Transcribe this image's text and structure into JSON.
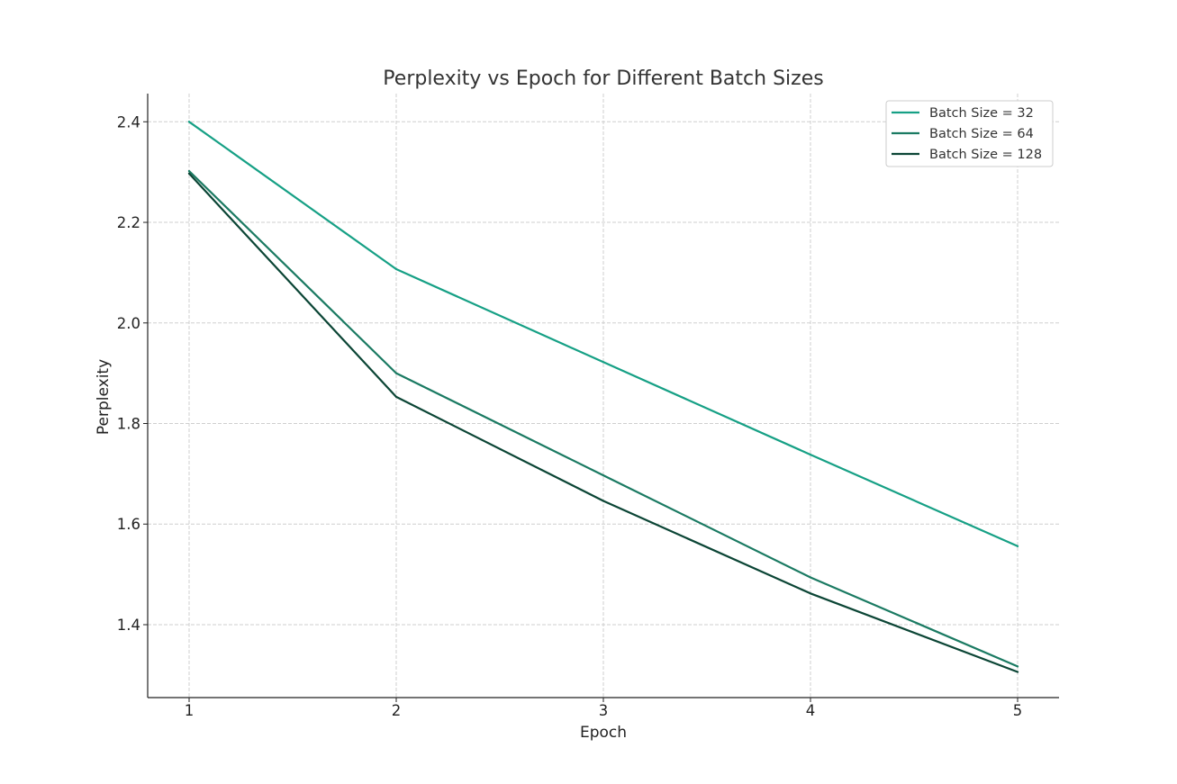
{
  "chart_data": {
    "type": "line",
    "title": "Perplexity vs Epoch for Different Batch Sizes",
    "xlabel": "Epoch",
    "ylabel": "Perplexity",
    "x": [
      1,
      2,
      3,
      4,
      5
    ],
    "xticks": [
      "1",
      "2",
      "3",
      "4",
      "5"
    ],
    "yticks": [
      "1.4",
      "1.6",
      "1.8",
      "2.0",
      "2.2",
      "2.4"
    ],
    "xlim": [
      0.8,
      5.2
    ],
    "ylim": [
      1.255,
      2.456
    ],
    "grid": true,
    "legend_position": "top-right",
    "series": [
      {
        "name": "Batch Size = 32",
        "color": "#16a085",
        "values": [
          2.4,
          2.107,
          1.922,
          1.738,
          1.556
        ]
      },
      {
        "name": "Batch Size = 64",
        "color": "#1a7a62",
        "values": [
          2.302,
          1.9,
          1.697,
          1.494,
          1.317
        ]
      },
      {
        "name": "Batch Size = 128",
        "color": "#0b4535",
        "values": [
          2.297,
          1.853,
          1.646,
          1.462,
          1.306
        ]
      }
    ]
  }
}
